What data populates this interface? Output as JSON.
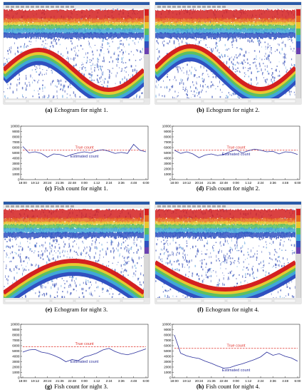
{
  "figure": {
    "panels": [
      {
        "label": "(a)",
        "caption": "Echogram for night 1."
      },
      {
        "label": "(b)",
        "caption": "Echogram for night 2."
      },
      {
        "label": "(c)",
        "caption": "Fish count for night 1."
      },
      {
        "label": "(d)",
        "caption": "Fish count for night 2."
      },
      {
        "label": "(e)",
        "caption": "Echogram for night 3."
      },
      {
        "label": "(f)",
        "caption": "Echogram for night 4."
      },
      {
        "label": "(g)",
        "caption": "Fish count for night 3."
      },
      {
        "label": "(h)",
        "caption": "Fish count for night 4."
      }
    ]
  },
  "chart_data": [
    {
      "type": "line",
      "categories": [
        "18:00",
        null,
        "19:12",
        null,
        "20:24",
        null,
        "21:36",
        null,
        "22:48",
        null,
        "0:00",
        null,
        "1:12",
        null,
        "2:24",
        null,
        "3:36",
        null,
        "4:48",
        null,
        "6:00"
      ],
      "ylim": [
        0,
        10000
      ],
      "yticks": [
        0,
        1000,
        2000,
        3000,
        4000,
        5000,
        6000,
        7000,
        8000,
        9000,
        10000
      ],
      "series": [
        {
          "name": "True count",
          "color": "#e0302a",
          "dashed": true,
          "values": [
            5500,
            5500,
            5500,
            5500,
            5500,
            5500,
            5500,
            5500,
            5500,
            5500,
            5500,
            5500,
            5500,
            5500,
            5500,
            5500,
            5500,
            5500,
            5500,
            5500,
            5500
          ]
        },
        {
          "name": "Estimated count",
          "color": "#2a2f9c",
          "dashed": false,
          "values": [
            6200,
            5000,
            5200,
            4900,
            4200,
            4800,
            4700,
            4300,
            4700,
            5000,
            5200,
            5000,
            5400,
            5600,
            5300,
            4900,
            5100,
            4900,
            6600,
            5500,
            5200
          ]
        }
      ]
    },
    {
      "type": "line",
      "categories": [
        "18:00",
        null,
        "19:12",
        null,
        "20:24",
        null,
        "21:36",
        null,
        "22:48",
        null,
        "0:00",
        null,
        "1:12",
        null,
        "2:24",
        null,
        "3:36",
        null,
        "4:48",
        null,
        "6:00"
      ],
      "ylim": [
        0,
        10000
      ],
      "yticks": [
        0,
        1000,
        2000,
        3000,
        4000,
        5000,
        6000,
        7000,
        8000,
        9000,
        10000
      ],
      "series": [
        {
          "name": "True count",
          "color": "#e0302a",
          "dashed": true,
          "values": [
            5500,
            5500,
            5500,
            5500,
            5500,
            5500,
            5500,
            5500,
            5500,
            5500,
            5500,
            5500,
            5500,
            5500,
            5500,
            5500,
            5500,
            5500,
            5500,
            5500,
            5500
          ]
        },
        {
          "name": "Estimated count",
          "color": "#2a2f9c",
          "dashed": false,
          "values": [
            5500,
            4900,
            5200,
            4800,
            4100,
            4600,
            4800,
            4500,
            4700,
            5200,
            5600,
            5000,
            5400,
            5700,
            5500,
            5200,
            5300,
            4800,
            5200,
            5100,
            4700
          ]
        }
      ]
    },
    {
      "type": "line",
      "categories": [
        "18:00",
        null,
        "19:12",
        null,
        "20:24",
        null,
        "21:36",
        null,
        "22:48",
        null,
        "0:00",
        null,
        "1:12",
        null,
        "2:24",
        null,
        "3:36",
        null,
        "4:48",
        null,
        "6:00"
      ],
      "ylim": [
        0,
        10000
      ],
      "yticks": [
        0,
        1000,
        2000,
        3000,
        4000,
        5000,
        6000,
        7000,
        8000,
        9000,
        10000
      ],
      "series": [
        {
          "name": "True count",
          "color": "#e0302a",
          "dashed": true,
          "values": [
            5800,
            5800,
            5800,
            5800,
            5800,
            5800,
            5800,
            5800,
            5800,
            5800,
            5800,
            5800,
            5800,
            5800,
            5800,
            5800,
            5800,
            5800,
            5800,
            5800,
            5800
          ]
        },
        {
          "name": "Estimated count",
          "color": "#2a2f9c",
          "dashed": false,
          "values": [
            4800,
            5200,
            5300,
            4800,
            4600,
            4200,
            3700,
            3000,
            3400,
            3200,
            3900,
            4200,
            4600,
            5200,
            5500,
            4900,
            4500,
            4300,
            4600,
            5000,
            5400
          ]
        }
      ]
    },
    {
      "type": "line",
      "categories": [
        "18:00",
        null,
        "19:12",
        null,
        "20:24",
        null,
        "21:36",
        null,
        "22:48",
        null,
        "0:00",
        null,
        "1:12",
        null,
        "2:24",
        null,
        "3:36",
        null,
        "4:48",
        null,
        "6:00"
      ],
      "ylim": [
        0,
        10000
      ],
      "yticks": [
        0,
        1000,
        2000,
        3000,
        4000,
        5000,
        6000,
        7000,
        8000,
        9000,
        10000
      ],
      "series": [
        {
          "name": "True count",
          "color": "#e0302a",
          "dashed": true,
          "values": [
            5500,
            5500,
            5500,
            5500,
            5500,
            5500,
            5500,
            5500,
            5500,
            5500,
            5500,
            5500,
            5500,
            5500,
            5500,
            5500,
            5500,
            5500,
            5500,
            5500,
            5500
          ]
        },
        {
          "name": "Estimated count",
          "color": "#2a2f9c",
          "dashed": false,
          "values": [
            8000,
            4600,
            4100,
            3800,
            3600,
            3100,
            2700,
            2200,
            1800,
            1900,
            2300,
            2600,
            3000,
            3400,
            3900,
            4800,
            4200,
            4500,
            4000,
            3700,
            3100
          ]
        }
      ]
    }
  ]
}
